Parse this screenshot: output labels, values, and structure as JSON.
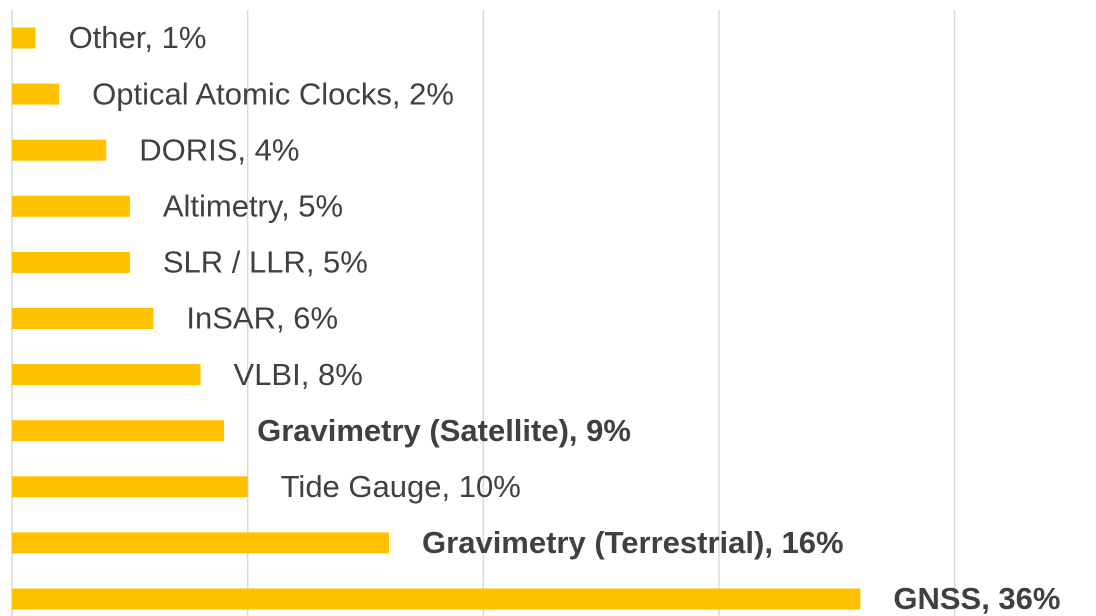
{
  "chart_data": {
    "type": "hbar",
    "values": [
      1,
      2,
      4,
      5,
      5,
      6,
      8,
      9,
      10,
      16,
      36
    ],
    "value_labels": [
      "Other, 1%",
      "Optical Atomic Clocks, 2%",
      "DORIS, 4%",
      "Altimetry, 5%",
      "SLR / LLR, 5%",
      "InSAR, 6%",
      "VLBI, 8%",
      "Gravimetry (Satellite), 9%",
      "Tide Gauge, 10%",
      "Gravimetry (Terrestrial), 16%",
      "GNSS, 36%"
    ],
    "bold_labels": [
      false,
      false,
      false,
      false,
      false,
      false,
      false,
      true,
      false,
      true,
      true
    ],
    "color": "#ffc000",
    "xlim": [
      0,
      46
    ],
    "gridlines": [
      0,
      10,
      20,
      30,
      40
    ],
    "grid": true
  }
}
